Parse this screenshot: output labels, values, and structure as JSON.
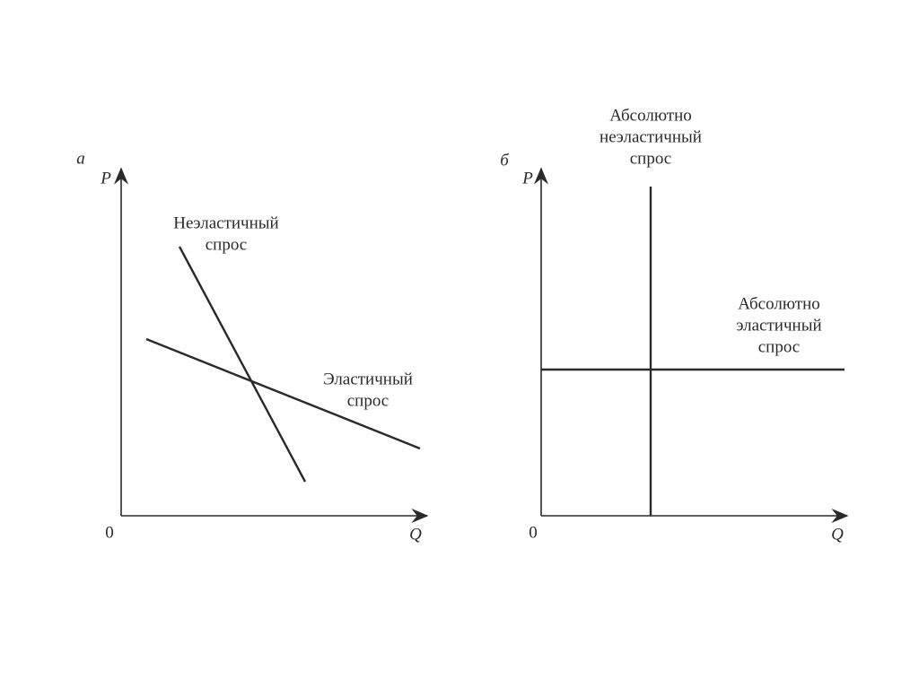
{
  "panels": [
    {
      "label": "а",
      "y_axis": "P",
      "x_axis": "Q",
      "origin": "0",
      "curves": [
        {
          "label": [
            "Неэластичный",
            "спрос"
          ]
        },
        {
          "label": [
            "Эластичный",
            "спрос"
          ]
        }
      ]
    },
    {
      "label": "б",
      "y_axis": "P",
      "x_axis": "Q",
      "origin": "0",
      "curves": [
        {
          "label": [
            "Абсолютно",
            "неэластичный",
            "спрос"
          ]
        },
        {
          "label": [
            "Абсолютно",
            "эластичный",
            "спрос"
          ]
        }
      ]
    }
  ]
}
